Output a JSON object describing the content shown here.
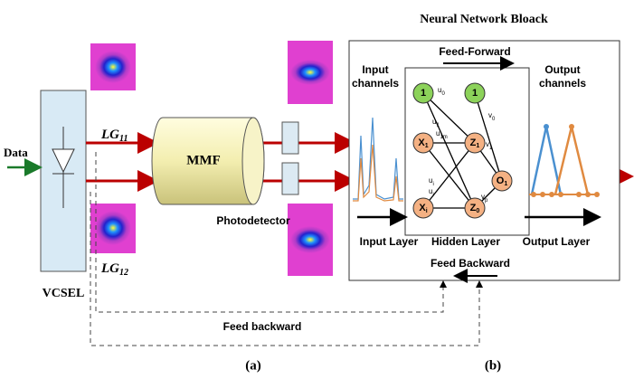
{
  "title": "Neural Network Bloack",
  "labels": {
    "data": "Data",
    "vcsel": "VCSEL",
    "mmf": "MMF",
    "photodetector": "Photodetector",
    "feed_backward_lower": "Feed backward",
    "panel_a": "(a)",
    "panel_b": "(b)"
  },
  "modes": [
    {
      "base": "LG",
      "sub": "11"
    },
    {
      "base": "LG",
      "sub": "12"
    }
  ],
  "network": {
    "input_channels": [
      "Input",
      "channels"
    ],
    "output_channels": [
      "Output",
      "channels"
    ],
    "feed_forward": "Feed-Forward",
    "feed_backward": "Feed Backward",
    "input_layer": "Input Layer",
    "hidden_layer": "Hidden Layer",
    "output_layer": "Output Layer",
    "nodes": [
      {
        "label": "1"
      },
      {
        "label": "X",
        "sub": "1"
      },
      {
        "label": "X",
        "sub": "i"
      },
      {
        "label": "1"
      },
      {
        "label": "Z",
        "sub": "1"
      },
      {
        "label": "Z",
        "sub": "0"
      },
      {
        "label": "O",
        "sub": "1"
      }
    ],
    "weights": [
      {
        "label": "u",
        "sub": "0"
      },
      {
        "label": "u",
        "sub": "1"
      },
      {
        "label": "u",
        "sub": "1m"
      },
      {
        "label": "u",
        "sub": "i"
      },
      {
        "label": "u",
        "sub": "i"
      },
      {
        "label": "v",
        "sub": "0"
      },
      {
        "label": "v",
        "sub": "1"
      },
      {
        "label": "v",
        "sub": "p"
      }
    ]
  }
}
